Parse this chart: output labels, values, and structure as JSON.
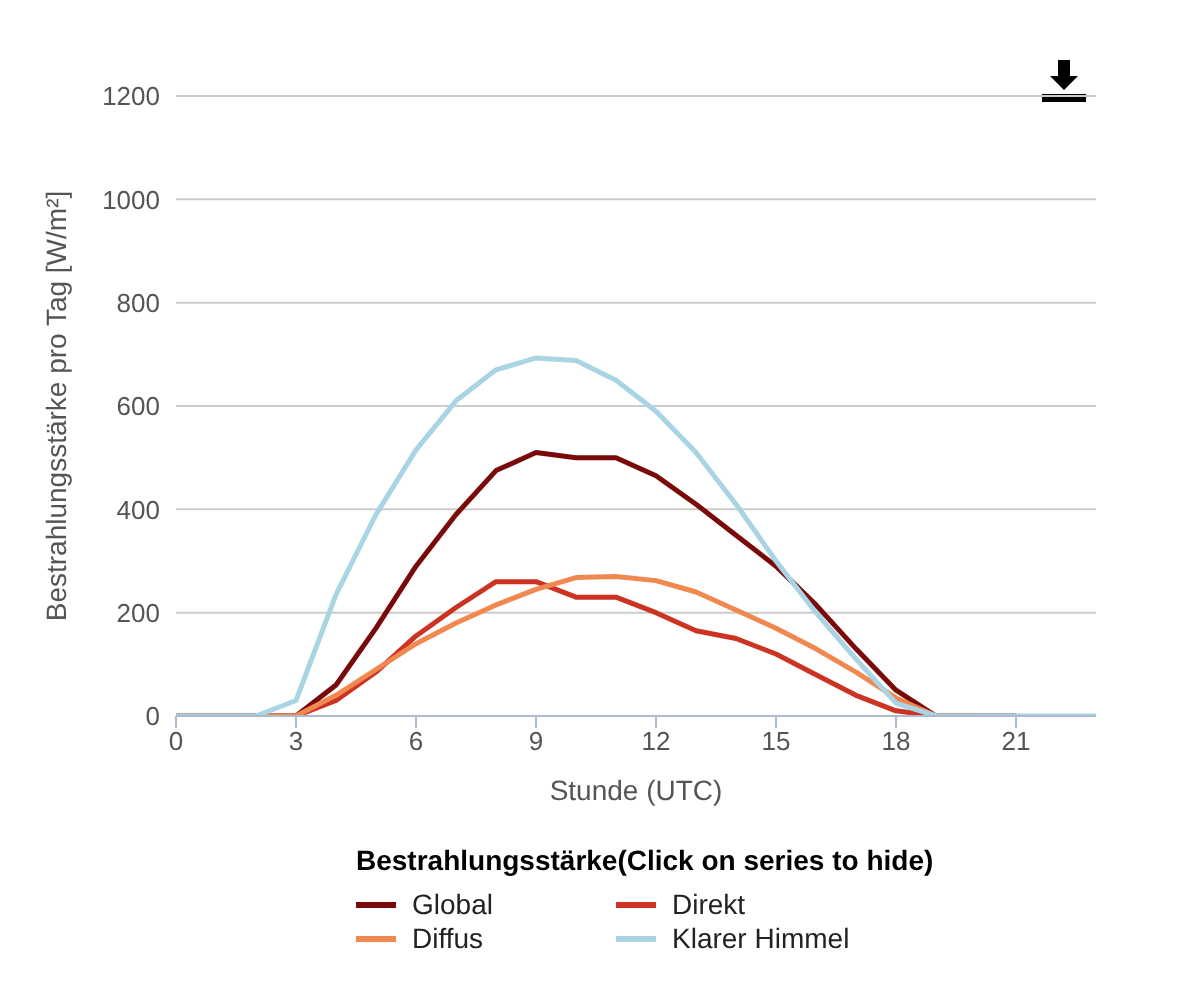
{
  "chart_data": {
    "type": "line",
    "xlabel": "Stunde (UTC)",
    "ylabel": "Bestrahlungsstärke pro Tag [W/m²]",
    "legend_title": "Bestrahlungsstärke(Click on series to hide)",
    "x": [
      0,
      1,
      2,
      3,
      4,
      5,
      6,
      7,
      8,
      9,
      10,
      11,
      12,
      13,
      14,
      15,
      16,
      17,
      18,
      19,
      20,
      21,
      22,
      23
    ],
    "series": [
      {
        "name": "Global",
        "color": "#7a0a0a",
        "values": [
          0,
          0,
          0,
          0,
          60,
          170,
          290,
          390,
          475,
          510,
          500,
          500,
          465,
          410,
          350,
          290,
          215,
          130,
          50,
          0,
          0,
          0,
          null,
          null
        ]
      },
      {
        "name": "Direkt",
        "color": "#cc3322",
        "values": [
          0,
          0,
          0,
          0,
          30,
          85,
          155,
          210,
          260,
          260,
          230,
          230,
          200,
          165,
          150,
          120,
          80,
          40,
          10,
          0,
          0,
          null,
          null,
          null
        ]
      },
      {
        "name": "Diffus",
        "color": "#f08850",
        "values": [
          0,
          0,
          0,
          0,
          40,
          90,
          140,
          180,
          215,
          245,
          268,
          270,
          262,
          240,
          205,
          170,
          130,
          85,
          35,
          0,
          0,
          null,
          null,
          null
        ]
      },
      {
        "name": "Klarer Himmel",
        "color": "#a8d4e4",
        "values": [
          0,
          0,
          0,
          30,
          235,
          390,
          515,
          610,
          670,
          693,
          688,
          650,
          590,
          510,
          410,
          300,
          200,
          110,
          25,
          0,
          0,
          0,
          0,
          0
        ]
      }
    ],
    "xlim": [
      0,
      23
    ],
    "xticks": [
      0,
      3,
      6,
      9,
      12,
      15,
      18,
      21
    ],
    "ylim": [
      0,
      1200
    ],
    "yticks": [
      0,
      200,
      400,
      600,
      800,
      1000,
      1200
    ],
    "grid": "y",
    "legend": "bottom",
    "marker": "none",
    "line_style": "solid"
  }
}
